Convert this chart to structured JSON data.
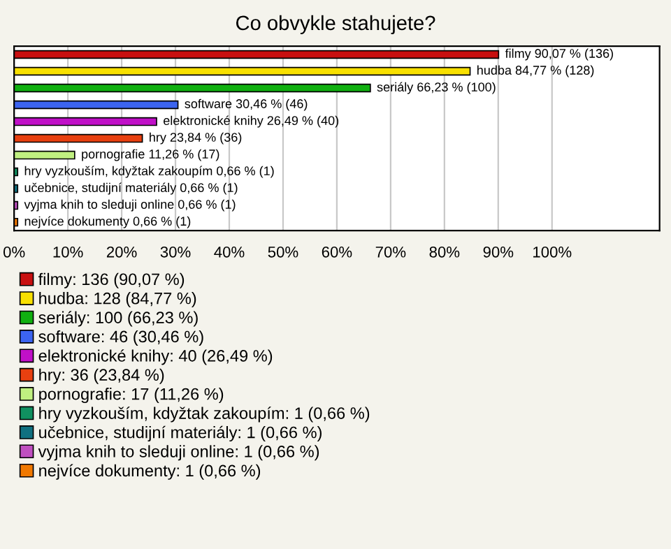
{
  "chart_data": {
    "type": "bar",
    "orientation": "horizontal",
    "stacked": true,
    "title": "Co obvykle stahujete?",
    "categories": [
      null,
      null,
      null,
      null,
      null,
      null,
      null,
      null,
      null,
      null,
      null
    ],
    "series": [
      {
        "name": "filmy: 136 (90,07 %)",
        "color": "#c81010",
        "values": [
          90.07,
          null,
          null,
          null,
          null,
          null,
          null,
          null,
          null,
          null,
          null
        ],
        "value_labels": [
          "filmy 90,07 % (136)",
          null,
          null,
          null,
          null,
          null,
          null,
          null,
          null,
          null,
          null
        ]
      },
      {
        "name": "hudba: 128 (84,77 %)",
        "color": "#f8e000",
        "values": [
          null,
          84.77,
          null,
          null,
          null,
          null,
          null,
          null,
          null,
          null,
          null
        ],
        "value_labels": [
          null,
          "hudba 84,77 % (128)",
          null,
          null,
          null,
          null,
          null,
          null,
          null,
          null,
          null
        ]
      },
      {
        "name": "seriály: 100 (66,23 %)",
        "color": "#10b010",
        "values": [
          null,
          null,
          66.23,
          null,
          null,
          null,
          null,
          null,
          null,
          null,
          null
        ],
        "value_labels": [
          null,
          null,
          "seriály 66,23 % (100)",
          null,
          null,
          null,
          null,
          null,
          null,
          null,
          null
        ]
      },
      {
        "name": "software: 46 (30,46 %)",
        "color": "#3c64f0",
        "values": [
          null,
          null,
          null,
          30.46,
          null,
          null,
          null,
          null,
          null,
          null,
          null
        ],
        "value_labels": [
          null,
          null,
          null,
          "software 30,46 % (46)",
          null,
          null,
          null,
          null,
          null,
          null,
          null
        ]
      },
      {
        "name": "elektronické knihy: 40 (26,49 %)",
        "color": "#c010c8",
        "values": [
          null,
          null,
          null,
          null,
          26.49,
          null,
          null,
          null,
          null,
          null,
          null
        ],
        "value_labels": [
          null,
          null,
          null,
          null,
          "elektronické knihy 26,49 % (40)",
          null,
          null,
          null,
          null,
          null,
          null
        ]
      },
      {
        "name": "hry: 36 (23,84 %)",
        "color": "#e84010",
        "values": [
          null,
          null,
          null,
          null,
          null,
          23.84,
          null,
          null,
          null,
          null,
          null
        ],
        "value_labels": [
          null,
          null,
          null,
          null,
          null,
          "hry 23,84 % (36)",
          null,
          null,
          null,
          null,
          null
        ]
      },
      {
        "name": "pornografie: 17 (11,26 %)",
        "color": "#c0f080",
        "values": [
          null,
          null,
          null,
          null,
          null,
          null,
          11.26,
          null,
          null,
          null,
          null
        ],
        "value_labels": [
          null,
          null,
          null,
          null,
          null,
          null,
          "pornografie 11,26 % (17)",
          null,
          null,
          null,
          null
        ]
      },
      {
        "name": "hry vyzkouším, kdyžtak zakoupím: 1 (0,66 %)",
        "color": "#109060",
        "values": [
          null,
          null,
          null,
          null,
          null,
          null,
          null,
          0.66,
          null,
          null,
          null
        ],
        "value_labels": [
          null,
          null,
          null,
          null,
          null,
          null,
          null,
          "hry vyzkouším, kdyžtak zakoupím 0,66 % (1)",
          null,
          null,
          null
        ]
      },
      {
        "name": "učebnice, studijní materiály: 1 (0,66 %)",
        "color": "#107080",
        "values": [
          null,
          null,
          null,
          null,
          null,
          null,
          null,
          null,
          0.66,
          null,
          null
        ],
        "value_labels": [
          null,
          null,
          null,
          null,
          null,
          null,
          null,
          null,
          "učebnice, studijní materiály 0,66 % (1)",
          null,
          null
        ]
      },
      {
        "name": "vyjma knih to sleduji online: 1 (0,66 %)",
        "color": "#c050c0",
        "values": [
          null,
          null,
          null,
          null,
          null,
          null,
          null,
          null,
          null,
          0.66,
          null
        ],
        "value_labels": [
          null,
          null,
          null,
          null,
          null,
          null,
          null,
          null,
          null,
          "vyjma knih to sleduji online 0,66 % (1)",
          null
        ]
      },
      {
        "name": "nejvíce dokumenty: 1 (0,66 %)",
        "color": "#f07800",
        "values": [
          null,
          null,
          null,
          null,
          null,
          null,
          null,
          null,
          null,
          null,
          0.66
        ],
        "value_labels": [
          null,
          null,
          null,
          null,
          null,
          null,
          null,
          null,
          null,
          null,
          "nejvíce dokumenty 0,66 % (1)"
        ]
      }
    ],
    "xlim": [
      0,
      120
    ],
    "xticks": [
      {
        "value": 0,
        "label": "0%"
      },
      {
        "value": 10,
        "label": "10%"
      },
      {
        "value": 20,
        "label": "20%"
      },
      {
        "value": 30,
        "label": "30%"
      },
      {
        "value": 40,
        "label": "40%"
      },
      {
        "value": 50,
        "label": "50%"
      },
      {
        "value": 60,
        "label": "60%"
      },
      {
        "value": 70,
        "label": "70%"
      },
      {
        "value": 80,
        "label": "80%"
      },
      {
        "value": 90,
        "label": "90%"
      },
      {
        "value": 100,
        "label": "100%"
      }
    ],
    "grid": "x",
    "legend": "bottom"
  }
}
